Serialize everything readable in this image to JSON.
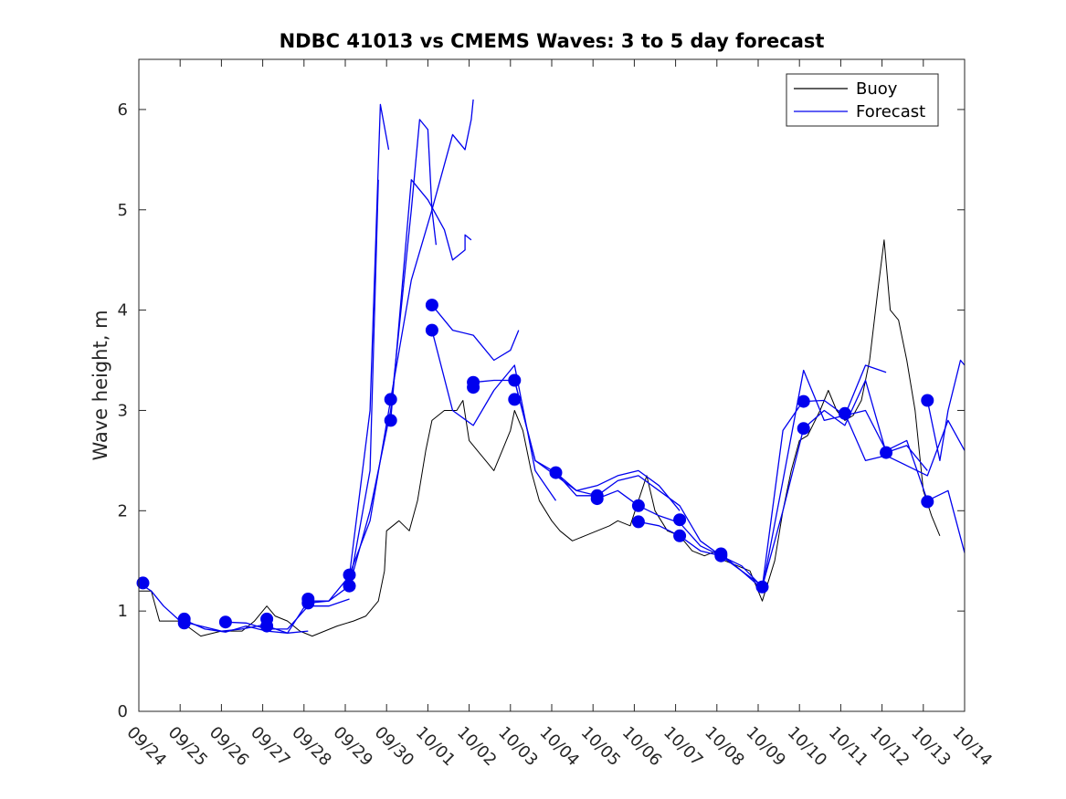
{
  "chart_data": {
    "type": "line",
    "title": "NDBC 41013 vs CMEMS Waves: 3 to 5 day forecast",
    "xlabel": "",
    "ylabel": "Wave height, m",
    "xlim": [
      0,
      20
    ],
    "ylim": [
      0,
      6.5
    ],
    "x_tick_labels": [
      "09/24",
      "09/25",
      "09/26",
      "09/27",
      "09/28",
      "09/29",
      "09/30",
      "10/01",
      "10/02",
      "10/03",
      "10/04",
      "10/05",
      "10/06",
      "10/07",
      "10/08",
      "10/09",
      "10/10",
      "10/11",
      "10/12",
      "10/13",
      "10/14"
    ],
    "y_ticks": [
      0,
      1,
      2,
      3,
      4,
      5,
      6
    ],
    "grid": false,
    "legend": {
      "position": "top-right",
      "entries": [
        {
          "name": "Buoy",
          "color": "#000000"
        },
        {
          "name": "Forecast",
          "color": "#0000ee"
        }
      ]
    },
    "series": [
      {
        "name": "Buoy",
        "color": "#000000",
        "points": [
          [
            0,
            1.2
          ],
          [
            0.3,
            1.2
          ],
          [
            0.5,
            0.9
          ],
          [
            1,
            0.9
          ],
          [
            1.5,
            0.75
          ],
          [
            2,
            0.8
          ],
          [
            2.5,
            0.8
          ],
          [
            2.8,
            0.9
          ],
          [
            3.1,
            1.05
          ],
          [
            3.3,
            0.95
          ],
          [
            3.6,
            0.9
          ],
          [
            3.9,
            0.8
          ],
          [
            4.2,
            0.75
          ],
          [
            4.5,
            0.8
          ],
          [
            4.8,
            0.85
          ],
          [
            5.2,
            0.9
          ],
          [
            5.5,
            0.95
          ],
          [
            5.8,
            1.1
          ],
          [
            5.95,
            1.4
          ],
          [
            6.0,
            1.8
          ],
          [
            6.3,
            1.9
          ],
          [
            6.55,
            1.8
          ],
          [
            6.75,
            2.1
          ],
          [
            6.95,
            2.6
          ],
          [
            7.1,
            2.9
          ],
          [
            7.4,
            3.0
          ],
          [
            7.7,
            3.0
          ],
          [
            7.85,
            3.1
          ],
          [
            8.0,
            2.7
          ],
          [
            8.2,
            2.6
          ],
          [
            8.4,
            2.5
          ],
          [
            8.6,
            2.4
          ],
          [
            8.8,
            2.6
          ],
          [
            9.0,
            2.8
          ],
          [
            9.1,
            3.0
          ],
          [
            9.3,
            2.8
          ],
          [
            9.5,
            2.4
          ],
          [
            9.7,
            2.1
          ],
          [
            10.0,
            1.9
          ],
          [
            10.2,
            1.8
          ],
          [
            10.5,
            1.7
          ],
          [
            10.8,
            1.75
          ],
          [
            11.1,
            1.8
          ],
          [
            11.4,
            1.85
          ],
          [
            11.6,
            1.9
          ],
          [
            11.9,
            1.85
          ],
          [
            12.1,
            2.1
          ],
          [
            12.3,
            2.35
          ],
          [
            12.5,
            2.0
          ],
          [
            12.8,
            1.8
          ],
          [
            13.1,
            1.75
          ],
          [
            13.4,
            1.6
          ],
          [
            13.7,
            1.55
          ],
          [
            14.0,
            1.6
          ],
          [
            14.2,
            1.5
          ],
          [
            14.5,
            1.45
          ],
          [
            14.8,
            1.4
          ],
          [
            15.0,
            1.2
          ],
          [
            15.1,
            1.1
          ],
          [
            15.4,
            1.5
          ],
          [
            15.6,
            2.0
          ],
          [
            15.8,
            2.4
          ],
          [
            16.0,
            2.7
          ],
          [
            16.2,
            2.75
          ],
          [
            16.5,
            3.0
          ],
          [
            16.7,
            3.2
          ],
          [
            16.9,
            3.0
          ],
          [
            17.1,
            2.9
          ],
          [
            17.3,
            2.95
          ],
          [
            17.5,
            3.1
          ],
          [
            17.7,
            3.5
          ],
          [
            17.9,
            4.2
          ],
          [
            18.05,
            4.7
          ],
          [
            18.2,
            4.0
          ],
          [
            18.4,
            3.9
          ],
          [
            18.6,
            3.5
          ],
          [
            18.8,
            3.0
          ],
          [
            19.0,
            2.2
          ],
          [
            19.2,
            1.95
          ],
          [
            19.4,
            1.75
          ]
        ]
      },
      {
        "name": "Forecast 1",
        "color": "#0000ee",
        "points": [
          [
            0,
            1.28
          ],
          [
            0.3,
            1.2
          ],
          [
            0.6,
            1.05
          ],
          [
            1.0,
            0.9
          ],
          [
            1.5,
            0.85
          ],
          [
            2.0,
            0.8
          ],
          [
            2.5,
            0.82
          ],
          [
            3.0,
            0.86
          ]
        ]
      },
      {
        "name": "Forecast 2",
        "color": "#0000ee",
        "points": [
          [
            1.1,
            0.91
          ],
          [
            1.6,
            0.82
          ],
          [
            2.1,
            0.79
          ],
          [
            2.6,
            0.85
          ],
          [
            3.1,
            0.8
          ],
          [
            3.6,
            0.78
          ],
          [
            4.1,
            0.8
          ]
        ]
      },
      {
        "name": "Forecast 3",
        "color": "#0000ee",
        "points": [
          [
            2.1,
            0.89
          ],
          [
            2.6,
            0.88
          ],
          [
            3.1,
            0.82
          ],
          [
            3.6,
            0.82
          ],
          [
            4.1,
            1.05
          ],
          [
            4.6,
            1.05
          ],
          [
            5.1,
            1.12
          ]
        ]
      },
      {
        "name": "Forecast 4",
        "color": "#0000ee",
        "points": [
          [
            3.1,
            0.85
          ],
          [
            3.6,
            0.78
          ],
          [
            4.1,
            1.1
          ],
          [
            4.6,
            1.1
          ],
          [
            5.1,
            1.25
          ],
          [
            5.6,
            2.4
          ],
          [
            5.8,
            5.3
          ]
        ]
      },
      {
        "name": "Forecast 5",
        "color": "#0000ee",
        "points": [
          [
            4.1,
            1.08
          ],
          [
            4.6,
            1.1
          ],
          [
            5.1,
            1.35
          ],
          [
            5.6,
            3.0
          ],
          [
            5.85,
            6.05
          ],
          [
            6.05,
            5.6
          ]
        ]
      },
      {
        "name": "Forecast 6",
        "color": "#0000ee",
        "points": [
          [
            5.1,
            1.25
          ],
          [
            5.6,
            2.0
          ],
          [
            6.1,
            3.0
          ],
          [
            6.6,
            5.0
          ],
          [
            6.8,
            5.9
          ],
          [
            7.0,
            5.8
          ],
          [
            7.1,
            5.0
          ],
          [
            7.2,
            4.65
          ]
        ]
      },
      {
        "name": "Forecast 7",
        "color": "#0000ee",
        "points": [
          [
            5.1,
            1.36
          ],
          [
            5.6,
            1.9
          ],
          [
            6.1,
            3.11
          ],
          [
            6.6,
            4.3
          ],
          [
            7.1,
            5.0
          ],
          [
            7.6,
            5.75
          ],
          [
            7.9,
            5.6
          ],
          [
            8.05,
            5.9
          ],
          [
            8.1,
            6.1
          ]
        ]
      },
      {
        "name": "Forecast 8",
        "color": "#0000ee",
        "points": [
          [
            6.1,
            2.9
          ],
          [
            6.6,
            5.3
          ],
          [
            7.0,
            5.1
          ],
          [
            7.4,
            4.8
          ],
          [
            7.6,
            4.5
          ],
          [
            7.9,
            4.6
          ],
          [
            7.9,
            4.75
          ],
          [
            8.05,
            4.7
          ]
        ]
      },
      {
        "name": "Forecast 9",
        "color": "#0000ee",
        "points": [
          [
            7.1,
            4.05
          ],
          [
            7.6,
            3.8
          ],
          [
            8.1,
            3.75
          ],
          [
            8.6,
            3.5
          ],
          [
            9.0,
            3.6
          ],
          [
            9.2,
            3.8
          ]
        ]
      },
      {
        "name": "Forecast 10",
        "color": "#0000ee",
        "points": [
          [
            7.1,
            3.8
          ],
          [
            7.6,
            3.0
          ],
          [
            8.1,
            2.85
          ],
          [
            8.6,
            3.2
          ],
          [
            9.1,
            3.45
          ],
          [
            9.6,
            2.4
          ],
          [
            10.1,
            2.1
          ]
        ]
      },
      {
        "name": "Forecast 11",
        "color": "#0000ee",
        "points": [
          [
            8.1,
            3.28
          ],
          [
            8.6,
            3.3
          ],
          [
            9.1,
            3.3
          ],
          [
            9.6,
            2.5
          ],
          [
            10.1,
            2.38
          ],
          [
            10.6,
            2.2
          ],
          [
            11.1,
            2.15
          ]
        ]
      },
      {
        "name": "Forecast 12",
        "color": "#0000ee",
        "points": [
          [
            9.1,
            3.3
          ],
          [
            9.6,
            2.5
          ],
          [
            10.1,
            2.35
          ],
          [
            10.6,
            2.2
          ],
          [
            11.1,
            2.25
          ],
          [
            11.6,
            2.35
          ],
          [
            12.1,
            2.4
          ],
          [
            12.6,
            2.25
          ],
          [
            13.1,
            2.0
          ]
        ]
      },
      {
        "name": "Forecast 13",
        "color": "#0000ee",
        "points": [
          [
            10.1,
            2.38
          ],
          [
            10.6,
            2.15
          ],
          [
            11.1,
            2.15
          ],
          [
            11.6,
            2.3
          ],
          [
            12.1,
            2.35
          ],
          [
            12.6,
            2.2
          ],
          [
            13.1,
            2.05
          ],
          [
            13.6,
            1.7
          ],
          [
            14.1,
            1.55
          ]
        ]
      },
      {
        "name": "Forecast 14",
        "color": "#0000ee",
        "points": [
          [
            11.1,
            2.12
          ],
          [
            11.6,
            2.2
          ],
          [
            12.1,
            2.05
          ],
          [
            12.6,
            1.95
          ],
          [
            13.1,
            1.88
          ],
          [
            13.6,
            1.65
          ],
          [
            14.1,
            1.55
          ],
          [
            14.6,
            1.4
          ],
          [
            15.1,
            1.25
          ]
        ]
      },
      {
        "name": "Forecast 15",
        "color": "#0000ee",
        "points": [
          [
            12.1,
            1.89
          ],
          [
            12.6,
            1.85
          ],
          [
            13.1,
            1.75
          ],
          [
            13.6,
            1.6
          ],
          [
            14.1,
            1.55
          ],
          [
            14.6,
            1.45
          ],
          [
            15.1,
            1.24
          ],
          [
            15.6,
            2.8
          ],
          [
            16.1,
            3.1
          ]
        ]
      },
      {
        "name": "Forecast 16",
        "color": "#0000ee",
        "points": [
          [
            14.1,
            1.57
          ],
          [
            14.6,
            1.4
          ],
          [
            15.1,
            1.22
          ],
          [
            15.6,
            2.3
          ],
          [
            16.1,
            3.4
          ],
          [
            16.6,
            2.9
          ],
          [
            17.1,
            2.95
          ],
          [
            17.6,
            3.45
          ],
          [
            18.1,
            3.38
          ]
        ]
      },
      {
        "name": "Forecast 17",
        "color": "#0000ee",
        "points": [
          [
            15.1,
            1.24
          ],
          [
            15.6,
            2.0
          ],
          [
            16.1,
            2.82
          ],
          [
            16.6,
            3.0
          ],
          [
            17.1,
            2.85
          ],
          [
            17.6,
            3.3
          ],
          [
            18.1,
            2.58
          ],
          [
            18.6,
            2.65
          ],
          [
            19.1,
            2.4
          ]
        ]
      },
      {
        "name": "Forecast 18",
        "color": "#0000ee",
        "points": [
          [
            16.1,
            3.09
          ],
          [
            16.6,
            3.1
          ],
          [
            17.1,
            2.95
          ],
          [
            17.6,
            3.0
          ],
          [
            18.1,
            2.6
          ],
          [
            18.6,
            2.7
          ],
          [
            19.1,
            2.1
          ],
          [
            19.6,
            2.2
          ],
          [
            20.0,
            1.58
          ]
        ]
      },
      {
        "name": "Forecast 19",
        "color": "#0000ee",
        "points": [
          [
            17.1,
            2.97
          ],
          [
            17.6,
            2.5
          ],
          [
            18.1,
            2.55
          ],
          [
            18.6,
            2.45
          ],
          [
            19.1,
            2.35
          ],
          [
            19.6,
            2.9
          ],
          [
            20.0,
            2.6
          ]
        ]
      },
      {
        "name": "Forecast 20",
        "color": "#0000ee",
        "points": [
          [
            19.1,
            3.1
          ],
          [
            19.4,
            2.5
          ],
          [
            19.6,
            3.0
          ],
          [
            19.9,
            3.5
          ],
          [
            20.0,
            3.45
          ]
        ]
      }
    ],
    "markers": [
      [
        0.1,
        1.28
      ],
      [
        1.1,
        0.92
      ],
      [
        1.1,
        0.88
      ],
      [
        2.1,
        0.89
      ],
      [
        3.1,
        0.92
      ],
      [
        3.1,
        0.85
      ],
      [
        4.1,
        1.12
      ],
      [
        4.1,
        1.08
      ],
      [
        5.1,
        1.36
      ],
      [
        5.1,
        1.25
      ],
      [
        6.1,
        3.11
      ],
      [
        6.1,
        2.9
      ],
      [
        7.1,
        4.05
      ],
      [
        7.1,
        3.8
      ],
      [
        8.1,
        3.28
      ],
      [
        8.1,
        3.23
      ],
      [
        9.1,
        3.3
      ],
      [
        9.1,
        3.11
      ],
      [
        10.1,
        2.38
      ],
      [
        11.1,
        2.15
      ],
      [
        11.1,
        2.12
      ],
      [
        12.1,
        2.05
      ],
      [
        12.1,
        1.89
      ],
      [
        13.1,
        1.91
      ],
      [
        13.1,
        1.75
      ],
      [
        14.1,
        1.57
      ],
      [
        14.1,
        1.55
      ],
      [
        15.1,
        1.24
      ],
      [
        16.1,
        3.09
      ],
      [
        16.1,
        2.82
      ],
      [
        17.1,
        2.97
      ],
      [
        18.1,
        2.58
      ],
      [
        19.1,
        3.1
      ],
      [
        19.1,
        2.09
      ]
    ]
  }
}
